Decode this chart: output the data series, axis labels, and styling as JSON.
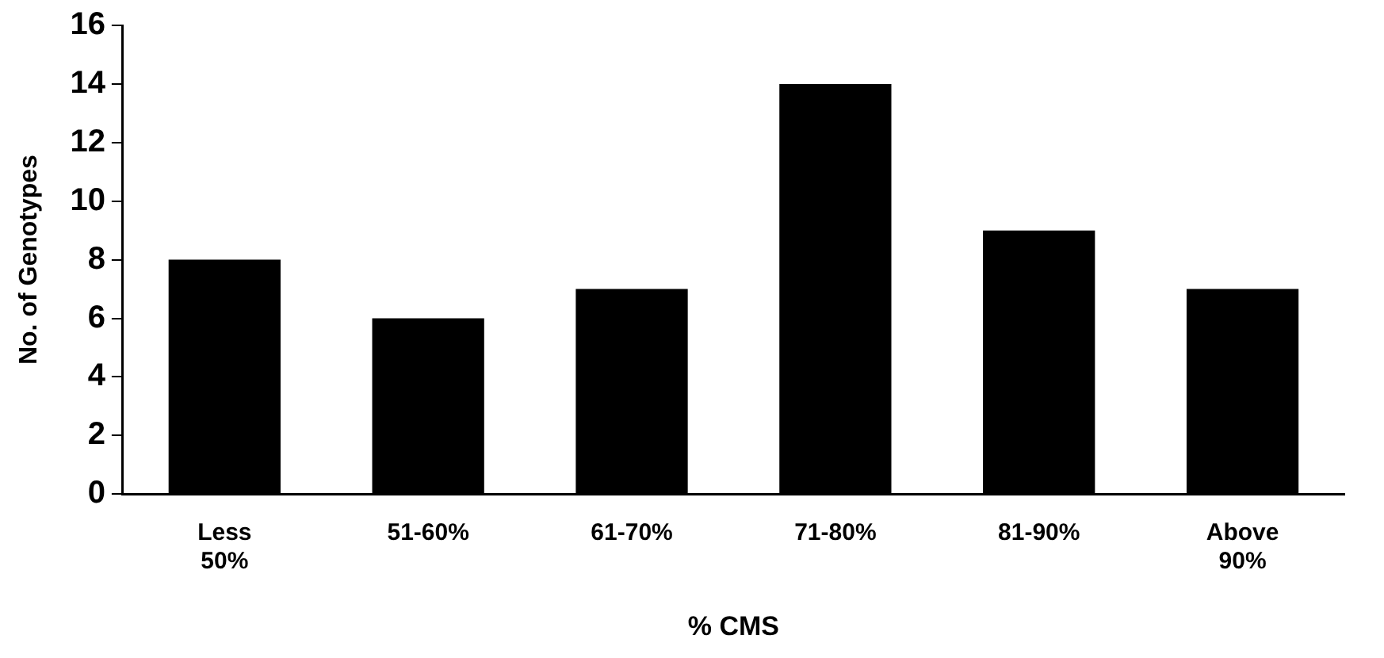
{
  "chart_data": {
    "type": "bar",
    "xlabel": "% CMS",
    "ylabel": "No. of Genotypes",
    "categories": [
      "Less 50%",
      "51-60%",
      "61-70%",
      "71-80%",
      "81-90%",
      "Above 90%"
    ],
    "values": [
      8,
      6,
      7,
      14,
      9,
      7
    ],
    "color": "#000000",
    "ylim": [
      0,
      16
    ],
    "yticks": [
      0,
      2,
      4,
      6,
      8,
      10,
      12,
      14,
      16
    ],
    "grid": false,
    "legend": false
  }
}
